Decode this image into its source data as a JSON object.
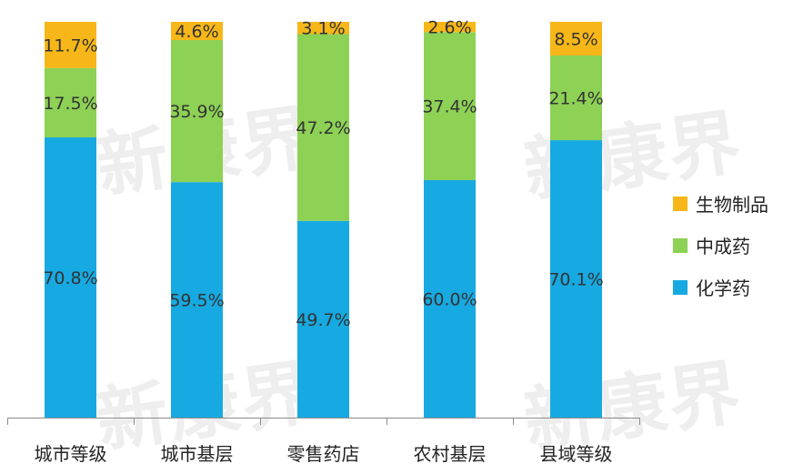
{
  "watermark": "新康界",
  "chart_data": {
    "type": "bar",
    "stacked": true,
    "categories": [
      "城市等级",
      "城市基层",
      "零售药店",
      "农村基层",
      "县域等级"
    ],
    "ylim": [
      0,
      100
    ],
    "series": [
      {
        "name": "化学药",
        "color": "#17A9E1",
        "values": [
          70.8,
          59.5,
          49.7,
          60.0,
          70.1
        ],
        "labels": [
          "70.8%",
          "59.5%",
          "49.7%",
          "60.0%",
          "70.1%"
        ]
      },
      {
        "name": "中成药",
        "color": "#8DD155",
        "values": [
          17.5,
          35.9,
          47.2,
          37.4,
          21.4
        ],
        "labels": [
          "17.5%",
          "35.9%",
          "47.2%",
          "37.4%",
          "21.4%"
        ]
      },
      {
        "name": "生物制品",
        "color": "#F7B718",
        "values": [
          11.7,
          4.6,
          3.1,
          2.6,
          8.5
        ],
        "labels": [
          "11.7%",
          "4.6%",
          "3.1%",
          "2.6%",
          "8.5%"
        ]
      }
    ],
    "legend": {
      "position": "right",
      "order": [
        "生物制品",
        "中成药",
        "化学药"
      ]
    },
    "grid": false
  }
}
